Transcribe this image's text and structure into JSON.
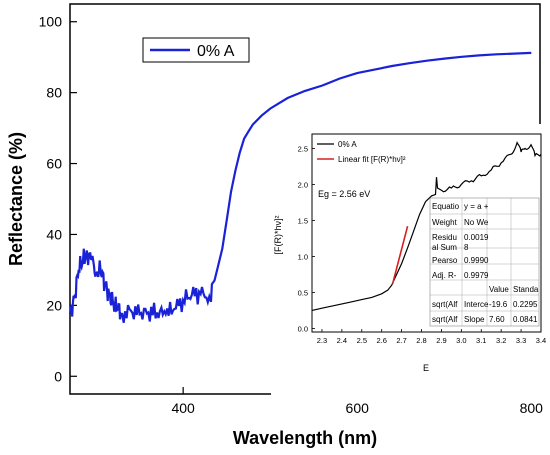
{
  "chart_data": [
    {
      "type": "line",
      "xlabel": "Wavelength (nm)",
      "ylabel": "Reflectance (%)",
      "xlim": [
        270,
        810
      ],
      "ylim": [
        -5,
        105
      ],
      "xticks": [
        400,
        600,
        800
      ],
      "yticks": [
        0,
        20,
        40,
        60,
        80,
        100
      ],
      "grid": false,
      "legend_position": "top-left",
      "series": [
        {
          "name": "0% A",
          "color": "#1a22d8",
          "x": [
            270,
            275,
            280,
            285,
            290,
            295,
            300,
            305,
            310,
            315,
            320,
            325,
            330,
            340,
            350,
            360,
            370,
            380,
            390,
            400,
            410,
            420,
            430,
            432,
            433,
            436,
            440,
            445,
            450,
            455,
            460,
            465,
            470,
            475,
            480,
            490,
            500,
            520,
            540,
            560,
            580,
            600,
            620,
            640,
            660,
            680,
            700,
            720,
            740,
            760,
            780,
            800
          ],
          "y": [
            17.5,
            22,
            30,
            33,
            34.5,
            33,
            29,
            30,
            26,
            23,
            20.5,
            19,
            17.5,
            18.5,
            17.5,
            18,
            18,
            17.5,
            19,
            21.5,
            23,
            23.2,
            22.5,
            21,
            26,
            27,
            31,
            36,
            44,
            52,
            58,
            63,
            67,
            69,
            71,
            73.5,
            75.5,
            78.5,
            80.5,
            82,
            84,
            85.5,
            86.5,
            87.5,
            88.3,
            89,
            89.6,
            90.1,
            90.5,
            90.8,
            91,
            91.2
          ]
        }
      ]
    },
    {
      "type": "line",
      "xlabel": "E",
      "ylabel": "[F(R)*hν]²",
      "xlim": [
        2.25,
        3.4
      ],
      "ylim": [
        -0.05,
        2.7
      ],
      "xticks": [
        2.3,
        2.4,
        2.5,
        2.6,
        2.7,
        2.8,
        2.9,
        3.0,
        3.1,
        3.2,
        3.3,
        3.4
      ],
      "yticks": [
        0.0,
        0.5,
        1.0,
        1.5,
        2.0,
        2.5
      ],
      "legend_position": "top-left",
      "annotation": "Eg = 2.56 eV",
      "series": [
        {
          "name": "0% A",
          "color": "#000000",
          "x": [
            2.25,
            2.3,
            2.35,
            2.4,
            2.45,
            2.5,
            2.55,
            2.6,
            2.63,
            2.65,
            2.67,
            2.7,
            2.73,
            2.76,
            2.79,
            2.82,
            2.85,
            2.87,
            2.875,
            2.88,
            2.9,
            2.95,
            3.0,
            3.05,
            3.1,
            3.15,
            3.2,
            3.25,
            3.28,
            3.3,
            3.32,
            3.35,
            3.37,
            3.4
          ],
          "y": [
            0.25,
            0.28,
            0.31,
            0.34,
            0.37,
            0.4,
            0.43,
            0.48,
            0.53,
            0.6,
            0.72,
            0.9,
            1.12,
            1.35,
            1.58,
            1.76,
            1.84,
            1.86,
            2.1,
            1.95,
            1.92,
            1.95,
            2.0,
            2.05,
            2.12,
            2.2,
            2.3,
            2.42,
            2.58,
            2.45,
            2.5,
            2.55,
            2.4,
            2.42
          ]
        },
        {
          "name": "Linear fit [F(R)*hν]²",
          "color": "#d62020",
          "x": [
            2.655,
            2.73
          ],
          "y": [
            0.62,
            1.42
          ]
        }
      ],
      "table": {
        "rows": [
          [
            "Equatio",
            "y = a +",
            "",
            ""
          ],
          [
            "Weight",
            "No We",
            "",
            ""
          ],
          [
            "Residu",
            "0.0019",
            "",
            ""
          ],
          [
            "al Sum",
            "8",
            "",
            ""
          ],
          [
            "Pearso",
            "0.9990",
            "",
            ""
          ],
          [
            "Adj. R-",
            "0.9979",
            "",
            ""
          ],
          [
            "",
            "",
            "Value",
            "Standa"
          ],
          [
            "sqrt(Alf",
            "Interce",
            "-19.6",
            "0.2295"
          ],
          [
            "sqrt(Alf",
            "Slope",
            "7.60",
            "0.0841"
          ]
        ]
      }
    }
  ]
}
